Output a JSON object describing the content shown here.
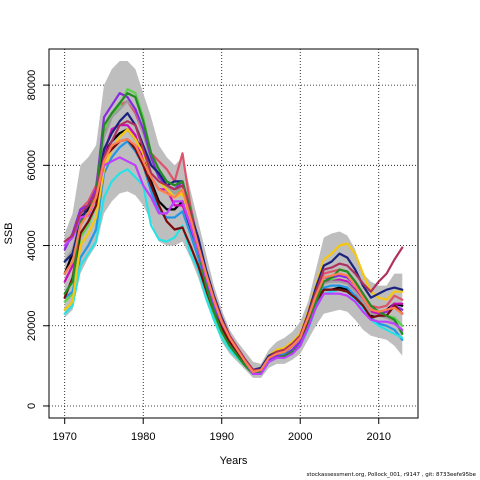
{
  "footer_text": "stockassessment.org, Pollock_001, r9147 , git: 8733eefe95be",
  "chart_data": {
    "type": "line",
    "xlabel": "Years",
    "ylabel": "SSB",
    "xlim": [
      1968,
      2015
    ],
    "ylim": [
      -3000,
      89000
    ],
    "x_ticks": [
      1970,
      1980,
      1990,
      2000,
      2010
    ],
    "y_ticks": [
      0,
      20000,
      40000,
      60000,
      80000
    ],
    "grid": true,
    "grid_style": "dotted",
    "band_color": "#bebebe",
    "x": [
      1970,
      1971,
      1972,
      1973,
      1974,
      1975,
      1976,
      1977,
      1978,
      1979,
      1980,
      1981,
      1982,
      1983,
      1984,
      1985,
      1986,
      1987,
      1988,
      1989,
      1990,
      1991,
      1992,
      1993,
      1994,
      1995,
      1996,
      1997,
      1998,
      1999,
      2000,
      2001,
      2002,
      2003,
      2004,
      2005,
      2006,
      2007,
      2008,
      2009,
      2010,
      2011,
      2012,
      2013
    ],
    "band": {
      "upper": [
        43000,
        48000,
        60000,
        62000,
        65000,
        80000,
        84000,
        86000,
        86000,
        84000,
        78000,
        72000,
        65000,
        62000,
        60000,
        62000,
        54000,
        46000,
        38000,
        30000,
        24000,
        19000,
        16000,
        13500,
        11000,
        10500,
        14000,
        16000,
        17000,
        18500,
        21000,
        26000,
        34000,
        42000,
        43000,
        43500,
        42500,
        39000,
        33000,
        31000,
        30000,
        30000,
        33000,
        33000
      ],
      "lower": [
        22000,
        24000,
        33000,
        37000,
        40000,
        48000,
        51000,
        53000,
        53500,
        52500,
        50000,
        46000,
        41000,
        40000,
        40000,
        41000,
        37000,
        32000,
        26000,
        21000,
        16000,
        13000,
        11000,
        9000,
        7000,
        7000,
        9500,
        10500,
        10500,
        11500,
        13000,
        16500,
        20000,
        23000,
        23500,
        24000,
        23500,
        21500,
        19000,
        17500,
        17000,
        16500,
        15000,
        12500
      ]
    },
    "series": [
      {
        "color": "#000000",
        "values": [
          33000,
          38000,
          47000,
          49000,
          54000,
          63000,
          66000,
          68000,
          69000,
          66500,
          64000,
          56000,
          51000,
          49000,
          49000,
          51000,
          44000,
          38000,
          31000,
          25000,
          21000,
          17000,
          14000,
          11000,
          9000,
          9500,
          12500,
          13500,
          13500,
          15000,
          17000,
          21000,
          25500,
          29000,
          29000,
          29500,
          29000,
          27500,
          25000,
          22500,
          23000,
          24000,
          25500,
          25000
        ]
      },
      {
        "color": "#df536b",
        "values": [
          40000,
          42000,
          49000,
          51000,
          55000,
          68000,
          73000,
          75000,
          76000,
          73000,
          68000,
          63000,
          61000,
          59000,
          56000,
          63000,
          50000,
          41000,
          33000,
          26000,
          21000,
          17000,
          14000,
          11000,
          8500,
          8500,
          12000,
          13500,
          13500,
          15500,
          17500,
          22500,
          28000,
          33000,
          33500,
          34000,
          33500,
          31000,
          28000,
          25000,
          24500,
          25000,
          27500,
          26500
        ]
      },
      {
        "color": "#61d04f",
        "values": [
          26000,
          28000,
          42000,
          45000,
          50000,
          69000,
          72000,
          75000,
          79000,
          78000,
          72000,
          63000,
          58000,
          55000,
          53000,
          54000,
          47000,
          37000,
          28000,
          22000,
          17000,
          14000,
          12000,
          10000,
          8000,
          8500,
          11500,
          12500,
          12500,
          14000,
          15500,
          20500,
          26500,
          31000,
          31500,
          31500,
          31000,
          29000,
          26500,
          24000,
          23000,
          22500,
          22000,
          20000
        ]
      },
      {
        "color": "#2297e6",
        "values": [
          27000,
          28500,
          37000,
          40000,
          44000,
          58000,
          62000,
          64500,
          66000,
          63500,
          60000,
          53500,
          48500,
          47000,
          47000,
          48500,
          43000,
          37000,
          30000,
          24000,
          19000,
          15500,
          13000,
          11000,
          8500,
          9000,
          11500,
          12500,
          13000,
          14000,
          16000,
          20500,
          25500,
          29500,
          30000,
          30000,
          29500,
          27500,
          25000,
          22000,
          20500,
          20000,
          19000,
          16500
        ]
      },
      {
        "color": "#28e2e5",
        "values": [
          23000,
          25000,
          35000,
          38000,
          41000,
          52000,
          56000,
          58000,
          59000,
          57000,
          55000,
          45000,
          41500,
          41000,
          42000,
          45000,
          38000,
          34000,
          27000,
          21500,
          17000,
          14000,
          12000,
          10000,
          8000,
          8000,
          11000,
          12000,
          12500,
          13500,
          15000,
          19000,
          24500,
          28000,
          28500,
          29000,
          28500,
          26500,
          24000,
          21500,
          20000,
          19000,
          18000,
          17000
        ]
      },
      {
        "color": "#cd0bbc",
        "values": [
          31000,
          35000,
          48000,
          50000,
          54000,
          63000,
          69000,
          70000,
          70000,
          67500,
          61000,
          57000,
          54000,
          54000,
          50000,
          50000,
          45000,
          39000,
          32000,
          26000,
          21000,
          17000,
          14000,
          11000,
          8500,
          9000,
          12000,
          13000,
          13500,
          15000,
          17000,
          21500,
          27000,
          31000,
          31000,
          31500,
          31000,
          29000,
          26500,
          23500,
          23000,
          23500,
          25500,
          25500
        ]
      },
      {
        "color": "#f5c710",
        "values": [
          24000,
          26000,
          40000,
          43000,
          47000,
          59000,
          64000,
          67000,
          69000,
          66500,
          63000,
          58000,
          56000,
          54000,
          52000,
          53000,
          47000,
          40000,
          32000,
          26000,
          21000,
          17000,
          14000,
          11500,
          9000,
          9500,
          12500,
          14000,
          14500,
          16000,
          18000,
          23500,
          30000,
          36500,
          38000,
          40000,
          40500,
          38000,
          33000,
          28500,
          27000,
          26500,
          28500,
          28500
        ]
      },
      {
        "color": "#9e9e9e",
        "values": [
          36000,
          39000,
          46000,
          48000,
          52000,
          67000,
          72000,
          74000,
          76000,
          74000,
          68000,
          61000,
          57000,
          55000,
          53000,
          55000,
          47000,
          40000,
          32000,
          26000,
          21000,
          17000,
          14000,
          11000,
          8500,
          9000,
          12000,
          13000,
          13500,
          15000,
          17000,
          22000,
          27000,
          30500,
          31000,
          31000,
          30500,
          28500,
          26000,
          23000,
          22500,
          22000,
          21000,
          18500
        ]
      },
      {
        "color": "#8a2be2",
        "values": [
          39000,
          43000,
          49000,
          50000,
          54000,
          72000,
          75000,
          78000,
          77000,
          74000,
          69000,
          62000,
          57000,
          55000,
          54000,
          56000,
          49000,
          41000,
          32000,
          25500,
          20500,
          16500,
          13500,
          10500,
          8000,
          8500,
          11500,
          12500,
          12500,
          14000,
          16000,
          21000,
          27500,
          32000,
          32000,
          32500,
          32000,
          30000,
          27000,
          24000,
          23500,
          23500,
          25000,
          24000
        ]
      },
      {
        "color": "#1a237e",
        "values": [
          36000,
          38000,
          46000,
          50000,
          53000,
          64000,
          68000,
          71000,
          73000,
          70000,
          65000,
          60000,
          58000,
          55000,
          56000,
          56000,
          48000,
          42000,
          34000,
          27500,
          22000,
          17500,
          14500,
          11500,
          9000,
          9500,
          12500,
          13500,
          14000,
          15500,
          17500,
          23000,
          29500,
          35000,
          36000,
          38000,
          37000,
          34000,
          30000,
          27000,
          28000,
          29000,
          29500,
          29000
        ]
      },
      {
        "color": "#7b0a0a",
        "values": [
          27000,
          32000,
          43000,
          46000,
          50000,
          62000,
          64000,
          66000,
          66500,
          64000,
          60000,
          55000,
          50000,
          46000,
          44000,
          44500,
          40000,
          35000,
          29000,
          23500,
          19500,
          16000,
          13500,
          10500,
          8500,
          9000,
          12000,
          13500,
          13500,
          15000,
          17000,
          21000,
          26000,
          29000,
          29000,
          29000,
          28500,
          27000,
          25000,
          22000,
          22500,
          22500,
          25000,
          23000
        ]
      },
      {
        "color": "#228b22",
        "values": [
          28000,
          31000,
          46000,
          48000,
          53000,
          70000,
          73000,
          75500,
          78000,
          77000,
          71000,
          63000,
          59000,
          56000,
          55000,
          56000,
          49000,
          39000,
          30000,
          23500,
          18500,
          15000,
          12500,
          10000,
          8000,
          8500,
          11000,
          12000,
          12500,
          13500,
          15000,
          20000,
          26000,
          31000,
          32000,
          34000,
          33500,
          31000,
          28000,
          25000,
          23500,
          22500,
          21500,
          18000
        ]
      },
      {
        "color": "#bf3eff",
        "values": [
          40000,
          42000,
          47000,
          47500,
          52000,
          60000,
          61000,
          62000,
          61000,
          60000,
          55000,
          52000,
          48000,
          48000,
          51000,
          51000,
          45000,
          39000,
          32000,
          26000,
          21000,
          17000,
          14000,
          11000,
          8000,
          8000,
          11000,
          12000,
          12000,
          13000,
          15000,
          19500,
          24500,
          28000,
          28000,
          28000,
          27500,
          26000,
          23500,
          21500,
          21000,
          21000,
          20500,
          19000
        ]
      },
      {
        "color": "#b03060",
        "values": [
          41000,
          42500,
          48000,
          50000,
          53000,
          62000,
          66000,
          70000,
          71000,
          70000,
          64000,
          58000,
          56000,
          55000,
          54000,
          55000,
          48000,
          40000,
          33000,
          27000,
          21500,
          17500,
          14500,
          11500,
          9000,
          9000,
          12000,
          13500,
          14000,
          15500,
          17500,
          22500,
          28500,
          34000,
          34500,
          35500,
          35000,
          33000,
          30500,
          28500,
          31000,
          33000,
          36500,
          39500
        ]
      },
      {
        "color": "#ff7f50",
        "values": [
          33000,
          36000,
          45000,
          48000,
          52000,
          61000,
          65000,
          66000,
          66500,
          65000,
          61000,
          57000,
          54000,
          53000,
          52000,
          54000,
          47000,
          40000,
          33000,
          26500,
          21000,
          17000,
          14000,
          11000,
          8500,
          9000,
          12000,
          13000,
          13500,
          15000,
          17000,
          22000,
          27500,
          32000,
          32500,
          33000,
          32500,
          30000,
          27000,
          24000,
          23500,
          24000,
          24500,
          23000
        ]
      }
    ]
  }
}
